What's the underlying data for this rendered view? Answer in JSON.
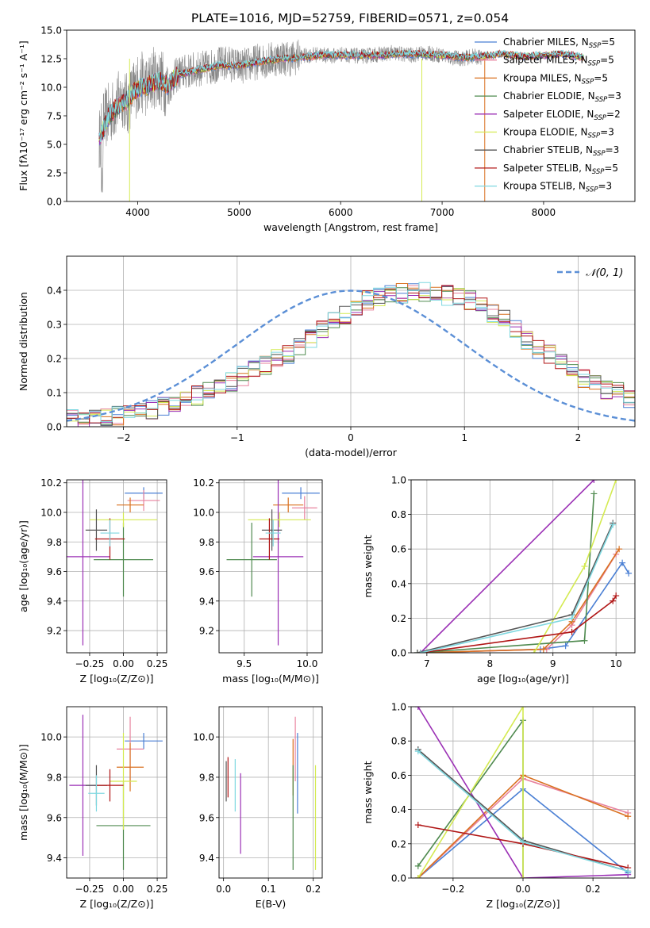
{
  "figure_title": "PLATE=1016, MJD=52759, FIBERID=0571, z=0.054",
  "legend_entries": [
    {
      "label": "Chabrier MILES, N",
      "sub": "SSP",
      "suffix": "=5",
      "color": "#4a7fd4"
    },
    {
      "label": "Salpeter MILES, N",
      "sub": "SSP",
      "suffix": "=5",
      "color": "#e8829e"
    },
    {
      "label": "Kroupa MILES, N",
      "sub": "SSP",
      "suffix": "=5",
      "color": "#d9701f"
    },
    {
      "label": "Chabrier ELODIE, N",
      "sub": "SSP",
      "suffix": "=3",
      "color": "#4f8a4f"
    },
    {
      "label": "Salpeter ELODIE, N",
      "sub": "SSP",
      "suffix": "=2",
      "color": "#9b30b5"
    },
    {
      "label": "Kroupa ELODIE, N",
      "sub": "SSP",
      "suffix": "=3",
      "color": "#d4ea52"
    },
    {
      "label": "Chabrier STELIB, N",
      "sub": "SSP",
      "suffix": "=3",
      "color": "#555555"
    },
    {
      "label": "Salpeter STELIB, N",
      "sub": "SSP",
      "suffix": "=5",
      "color": "#b01515"
    },
    {
      "label": "Kroupa STELIB, N",
      "sub": "SSP",
      "suffix": "=3",
      "color": "#7fd8e0"
    }
  ],
  "chart_data": [
    {
      "id": "spectrum",
      "type": "line",
      "xlabel": "wavelength [Angstrom, rest frame]",
      "ylabel": "Flux [fλ10⁻¹⁷ erg cm⁻² s⁻¹ A⁻¹]",
      "xlim": [
        3300,
        8900
      ],
      "ylim": [
        0,
        15
      ],
      "xticks": [
        4000,
        5000,
        6000,
        7000,
        8000
      ],
      "xtick_labels": [
        "4000",
        "5000",
        "6000",
        "7000",
        "8000"
      ],
      "yticks": [
        0,
        2.5,
        5,
        7.5,
        10,
        12.5,
        15
      ],
      "ytick_labels": [
        "0.0",
        "2.5",
        "5.0",
        "7.5",
        "10.0",
        "12.5",
        "15.0"
      ],
      "grid": false,
      "legend_position": "right",
      "data_series": {
        "name": "data",
        "color": "#888888",
        "x": [
          3620,
          3650,
          3700,
          3750,
          3800,
          3850,
          3900,
          3950,
          4000,
          4050,
          4100,
          4150,
          4200,
          4250,
          4300,
          4350,
          4400,
          4500,
          4600,
          4700,
          4800,
          4900,
          5000,
          5100,
          5200,
          5300,
          5400,
          5500,
          5600,
          5700,
          5800,
          5900,
          6000,
          6100,
          6200,
          6300,
          6400,
          6500,
          6600,
          6700,
          6800,
          6900,
          7000,
          7100,
          7200,
          7300,
          7400
        ],
        "y": [
          5.2,
          6.8,
          7.5,
          7.9,
          8.6,
          9.2,
          8.4,
          9.6,
          10.2,
          10.4,
          10.0,
          10.9,
          10.8,
          10.5,
          9.8,
          10.7,
          11.2,
          11.4,
          11.6,
          11.7,
          12.0,
          12.1,
          11.8,
          12.0,
          12.3,
          12.4,
          12.6,
          12.5,
          12.7,
          12.8,
          12.9,
          12.7,
          12.9,
          12.8,
          12.7,
          12.8,
          12.9,
          13.0,
          12.9,
          12.8,
          13.0,
          12.9,
          12.8,
          12.6,
          12.5,
          12.7,
          12.6
        ]
      },
      "model_x": [
        3620,
        3700,
        3800,
        3900,
        4000,
        4100,
        4200,
        4300,
        4400,
        4600,
        4800,
        5000,
        5200,
        5400,
        5600,
        5800,
        6000,
        6200,
        6400,
        6600,
        6800,
        7000,
        7200,
        7400,
        7600,
        7800,
        8000,
        8200,
        8400
      ],
      "model_y": [
        5.3,
        7.3,
        8.3,
        8.9,
        9.9,
        10.1,
        10.6,
        10.2,
        11.1,
        11.5,
        11.9,
        11.9,
        12.2,
        12.5,
        12.6,
        12.8,
        12.8,
        12.8,
        12.8,
        12.9,
        12.9,
        12.8,
        12.6,
        12.7,
        12.9,
        12.7,
        12.8,
        12.9,
        12.6
      ]
    },
    {
      "id": "residuals",
      "type": "histogram",
      "xlabel": "(data-model)/error",
      "ylabel": "Normed distribution",
      "xlim": [
        -2.5,
        2.5
      ],
      "ylim": [
        0,
        0.5
      ],
      "xticks": [
        -2,
        -1,
        0,
        1,
        2
      ],
      "xtick_labels": [
        "−2",
        "−1",
        "0",
        "1",
        "2"
      ],
      "yticks": [
        0,
        0.1,
        0.2,
        0.3,
        0.4
      ],
      "ytick_labels": [
        "0.0",
        "0.1",
        "0.2",
        "0.3",
        "0.4"
      ],
      "grid": true,
      "reference_label": "𝒩(0, 1)",
      "reference_color": "#5b8fd6",
      "bin_width": 0.1,
      "bin_start": -2.5,
      "base_density": [
        0.02,
        0.022,
        0.025,
        0.03,
        0.035,
        0.04,
        0.045,
        0.05,
        0.058,
        0.068,
        0.08,
        0.09,
        0.1,
        0.12,
        0.13,
        0.15,
        0.165,
        0.18,
        0.2,
        0.215,
        0.24,
        0.26,
        0.29,
        0.31,
        0.33,
        0.355,
        0.37,
        0.38,
        0.385,
        0.39,
        0.4,
        0.395,
        0.4,
        0.385,
        0.38,
        0.37,
        0.355,
        0.33,
        0.32,
        0.29,
        0.25,
        0.23,
        0.21,
        0.19,
        0.17,
        0.145,
        0.13,
        0.11,
        0.1,
        0.085,
        0.07
      ]
    },
    {
      "id": "age_vs_Z",
      "type": "scatter",
      "xlabel": "Z [log₁₀(Z/Z⊙)]",
      "ylabel": "age  [log₁₀(age/yr)]",
      "xlim": [
        -0.42,
        0.32
      ],
      "ylim": [
        9.05,
        10.22
      ],
      "xticks": [
        -0.25,
        0,
        0.25
      ],
      "xtick_labels": [
        "−0.25",
        "0.00",
        "0.25"
      ],
      "yticks": [
        9.2,
        9.4,
        9.6,
        9.8,
        10.0,
        10.2
      ],
      "ytick_labels": [
        "9.2",
        "9.4",
        "9.6",
        "9.8",
        "10.0",
        "10.2"
      ],
      "grid": true,
      "points": [
        {
          "x": 0.15,
          "y": 10.13,
          "xerr": 0.14,
          "yerr": 0.04,
          "c": 0
        },
        {
          "x": 0.15,
          "y": 10.08,
          "xerr": 0.12,
          "yerr": 0.07,
          "c": 1
        },
        {
          "x": 0.05,
          "y": 10.05,
          "xerr": 0.1,
          "yerr": 0.05,
          "c": 2
        },
        {
          "x": 0.0,
          "y": 9.68,
          "xerr": 0.22,
          "yerr": 0.25,
          "c": 3
        },
        {
          "x": -0.3,
          "y": 9.7,
          "xerr": 0.2,
          "yerr": 0.6,
          "c": 4
        },
        {
          "x": 0.0,
          "y": 9.95,
          "xerr": 0.25,
          "yerr": 0.05,
          "c": 5
        },
        {
          "x": -0.2,
          "y": 9.88,
          "xerr": 0.08,
          "yerr": 0.14,
          "c": 6
        },
        {
          "x": -0.1,
          "y": 9.82,
          "xerr": 0.11,
          "yerr": 0.14,
          "c": 7
        },
        {
          "x": -0.1,
          "y": 9.86,
          "xerr": 0.07,
          "yerr": 0.09,
          "c": 8
        }
      ]
    },
    {
      "id": "age_vs_mass",
      "type": "scatter",
      "xlabel": "mass [log₁₀(M/M⊙)]",
      "ylabel": "",
      "xlim": [
        9.3,
        10.12
      ],
      "ylim": [
        9.05,
        10.22
      ],
      "xticks": [
        9.5,
        10.0
      ],
      "xtick_labels": [
        "9.5",
        "10.0"
      ],
      "yticks": [
        9.2,
        9.4,
        9.6,
        9.8,
        10.0,
        10.2
      ],
      "ytick_labels": [
        "9.2",
        "9.4",
        "9.6",
        "9.8",
        "10.0",
        "10.2"
      ],
      "grid": true,
      "points": [
        {
          "x": 9.95,
          "y": 10.13,
          "xerr": 0.15,
          "yerr": 0.04,
          "c": 0
        },
        {
          "x": 9.98,
          "y": 10.03,
          "xerr": 0.1,
          "yerr": 0.08,
          "c": 1
        },
        {
          "x": 9.85,
          "y": 10.05,
          "xerr": 0.12,
          "yerr": 0.05,
          "c": 2
        },
        {
          "x": 9.56,
          "y": 9.68,
          "xerr": 0.2,
          "yerr": 0.25,
          "c": 3
        },
        {
          "x": 9.77,
          "y": 9.7,
          "xerr": 0.2,
          "yerr": 0.6,
          "c": 4
        },
        {
          "x": 9.78,
          "y": 9.95,
          "xerr": 0.25,
          "yerr": 0.05,
          "c": 5
        },
        {
          "x": 9.72,
          "y": 9.88,
          "xerr": 0.08,
          "yerr": 0.14,
          "c": 6
        },
        {
          "x": 9.7,
          "y": 9.82,
          "xerr": 0.08,
          "yerr": 0.14,
          "c": 7
        },
        {
          "x": 9.73,
          "y": 9.86,
          "xerr": 0.06,
          "yerr": 0.09,
          "c": 8
        }
      ]
    },
    {
      "id": "weight_vs_age",
      "type": "line",
      "xlabel": "age  [log₁₀(age/yr)]",
      "ylabel": "mass weight",
      "xlim": [
        6.75,
        10.3
      ],
      "ylim": [
        0,
        1
      ],
      "xticks": [
        7,
        8,
        9,
        10
      ],
      "xtick_labels": [
        "7",
        "8",
        "9",
        "10"
      ],
      "yticks": [
        0,
        0.2,
        0.4,
        0.6,
        0.8,
        1.0
      ],
      "ytick_labels": [
        "0.0",
        "0.2",
        "0.4",
        "0.6",
        "0.8",
        "1.0"
      ],
      "grid": true,
      "series": [
        {
          "c": 0,
          "x": [
            6.9,
            8.8,
            9.2,
            10.1,
            10.2
          ],
          "y": [
            0.0,
            0.02,
            0.04,
            0.52,
            0.46
          ]
        },
        {
          "c": 1,
          "x": [
            6.9,
            8.9,
            9.3,
            10.0
          ],
          "y": [
            0.0,
            0.02,
            0.16,
            0.57
          ]
        },
        {
          "c": 2,
          "x": [
            6.9,
            8.85,
            9.3,
            10.05
          ],
          "y": [
            0.0,
            0.02,
            0.18,
            0.6
          ]
        },
        {
          "c": 3,
          "x": [
            6.85,
            9.5,
            9.65
          ],
          "y": [
            0.0,
            0.07,
            0.92
          ]
        },
        {
          "c": 4,
          "x": [
            6.9,
            9.65
          ],
          "y": [
            0.0,
            1.0
          ]
        },
        {
          "c": 5,
          "x": [
            8.7,
            9.5,
            10.0
          ],
          "y": [
            0.0,
            0.5,
            1.0
          ]
        },
        {
          "c": 6,
          "x": [
            6.85,
            9.3,
            9.95
          ],
          "y": [
            0.0,
            0.22,
            0.75
          ]
        },
        {
          "c": 7,
          "x": [
            6.9,
            9.3,
            9.95,
            10.0
          ],
          "y": [
            0.0,
            0.12,
            0.3,
            0.33
          ]
        },
        {
          "c": 8,
          "x": [
            6.9,
            9.3,
            9.95
          ],
          "y": [
            0.0,
            0.2,
            0.74
          ]
        }
      ]
    },
    {
      "id": "mass_vs_Z",
      "type": "scatter",
      "xlabel": "Z [log₁₀(Z/Z⊙)]",
      "ylabel": "mass [log₁₀(M/M⊙)]",
      "xlim": [
        -0.42,
        0.32
      ],
      "ylim": [
        9.3,
        10.15
      ],
      "xticks": [
        -0.25,
        0,
        0.25
      ],
      "xtick_labels": [
        "−0.25",
        "0.00",
        "0.25"
      ],
      "yticks": [
        9.4,
        9.6,
        9.8,
        10.0
      ],
      "ytick_labels": [
        "9.4",
        "9.6",
        "9.8",
        "10.0"
      ],
      "grid": true,
      "points": [
        {
          "x": 0.15,
          "y": 9.98,
          "xerr": 0.14,
          "yerr": 0.04,
          "c": 0
        },
        {
          "x": 0.05,
          "y": 9.94,
          "xerr": 0.1,
          "yerr": 0.16,
          "c": 1
        },
        {
          "x": 0.05,
          "y": 9.85,
          "xerr": 0.1,
          "yerr": 0.12,
          "c": 2
        },
        {
          "x": 0.0,
          "y": 9.56,
          "xerr": 0.2,
          "yerr": 0.22,
          "c": 3
        },
        {
          "x": -0.3,
          "y": 9.76,
          "xerr": 0.1,
          "yerr": 0.35,
          "c": 4
        },
        {
          "x": 0.0,
          "y": 9.78,
          "xerr": 0.1,
          "yerr": 0.24,
          "c": 5
        },
        {
          "x": -0.2,
          "y": 9.76,
          "xerr": 0.08,
          "yerr": 0.1,
          "c": 6
        },
        {
          "x": -0.1,
          "y": 9.76,
          "xerr": 0.1,
          "yerr": 0.08,
          "c": 7
        },
        {
          "x": -0.2,
          "y": 9.72,
          "xerr": 0.06,
          "yerr": 0.09,
          "c": 8
        }
      ]
    },
    {
      "id": "mass_vs_EBV",
      "type": "scatter",
      "xlabel": "E(B-V)",
      "ylabel": "",
      "xlim": [
        -0.01,
        0.22
      ],
      "ylim": [
        9.3,
        10.15
      ],
      "xticks": [
        0.0,
        0.1,
        0.2
      ],
      "xtick_labels": [
        "0.0",
        "0.1",
        "0.2"
      ],
      "yticks": [
        9.4,
        9.6,
        9.8,
        10.0
      ],
      "ytick_labels": [
        "9.4",
        "9.6",
        "9.8",
        "10.0"
      ],
      "grid": true,
      "points": [
        {
          "x": 0.165,
          "y": 9.82,
          "xerr": 0,
          "yerr": 0.2,
          "c": 0
        },
        {
          "x": 0.16,
          "y": 9.94,
          "xerr": 0,
          "yerr": 0.16,
          "c": 1
        },
        {
          "x": 0.155,
          "y": 9.85,
          "xerr": 0,
          "yerr": 0.14,
          "c": 2
        },
        {
          "x": 0.155,
          "y": 9.6,
          "xerr": 0,
          "yerr": 0.26,
          "c": 3
        },
        {
          "x": 0.038,
          "y": 9.62,
          "xerr": 0,
          "yerr": 0.2,
          "c": 4
        },
        {
          "x": 0.205,
          "y": 9.6,
          "xerr": 0,
          "yerr": 0.26,
          "c": 5
        },
        {
          "x": 0.006,
          "y": 9.78,
          "xerr": 0,
          "yerr": 0.1,
          "c": 6
        },
        {
          "x": 0.01,
          "y": 9.8,
          "xerr": 0,
          "yerr": 0.1,
          "c": 7
        },
        {
          "x": 0.026,
          "y": 9.76,
          "xerr": 0,
          "yerr": 0.13,
          "c": 8
        }
      ]
    },
    {
      "id": "weight_vs_Z",
      "type": "line",
      "xlabel": "Z [log₁₀(Z/Z⊙)]",
      "ylabel": "mass weight",
      "xlim": [
        -0.32,
        0.32
      ],
      "ylim": [
        0,
        1
      ],
      "xticks": [
        -0.2,
        0.0,
        0.2
      ],
      "xtick_labels": [
        "−0.2",
        "0.0",
        "0.2"
      ],
      "yticks": [
        0,
        0.2,
        0.4,
        0.6,
        0.8,
        1.0
      ],
      "ytick_labels": [
        "0.0",
        "0.2",
        "0.4",
        "0.6",
        "0.8",
        "1.0"
      ],
      "grid": true,
      "series": [
        {
          "c": 0,
          "x": [
            -0.3,
            0.0,
            0.3
          ],
          "y": [
            0.0,
            0.52,
            0.03
          ]
        },
        {
          "c": 1,
          "x": [
            -0.3,
            0.0,
            0.3
          ],
          "y": [
            0.0,
            0.58,
            0.38
          ]
        },
        {
          "c": 2,
          "x": [
            -0.3,
            0.0,
            0.3
          ],
          "y": [
            0.0,
            0.6,
            0.36
          ]
        },
        {
          "c": 3,
          "x": [
            -0.3,
            0.0,
            0.0
          ],
          "y": [
            0.07,
            0.92,
            0.0
          ]
        },
        {
          "c": 4,
          "x": [
            -0.3,
            0.0,
            0.3
          ],
          "y": [
            1.0,
            0.0,
            0.02
          ]
        },
        {
          "c": 5,
          "x": [
            -0.3,
            0.0,
            0.0
          ],
          "y": [
            0.0,
            1.0,
            0.0
          ]
        },
        {
          "c": 6,
          "x": [
            -0.3,
            0.0,
            0.3
          ],
          "y": [
            0.75,
            0.22,
            0.04
          ]
        },
        {
          "c": 7,
          "x": [
            -0.3,
            0.0,
            0.3
          ],
          "y": [
            0.31,
            0.2,
            0.06
          ]
        },
        {
          "c": 8,
          "x": [
            -0.3,
            0.0,
            0.3
          ],
          "y": [
            0.74,
            0.21,
            0.04
          ]
        }
      ]
    }
  ]
}
